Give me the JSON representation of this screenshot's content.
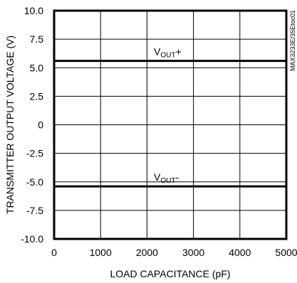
{
  "chart_data": {
    "type": "line",
    "xlabel": "LOAD CAPACITANCE (pF)",
    "ylabel": "TRANSMITTER OUTPUT VOLTAGE (V)",
    "xlim": [
      0,
      5000
    ],
    "ylim": [
      -10.0,
      10.0
    ],
    "xticks": [
      "0",
      "1000",
      "2000",
      "3000",
      "4000",
      "5000"
    ],
    "yticks": [
      "10.0",
      "7.5",
      "5.0",
      "2.5",
      "0",
      "-2.5",
      "-5.0",
      "-7.5",
      "-10.0"
    ],
    "grid": true,
    "code": "MAX3233E/35Etoc01",
    "series": [
      {
        "name_main": "V",
        "name_sub": "OUT",
        "name_suffix": "+",
        "x": [
          0,
          5000
        ],
        "y": [
          5.6,
          5.6
        ]
      },
      {
        "name_main": "V",
        "name_sub": "OUT",
        "name_suffix": "-",
        "x": [
          0,
          5000
        ],
        "y": [
          -5.4,
          -5.4
        ]
      }
    ]
  }
}
